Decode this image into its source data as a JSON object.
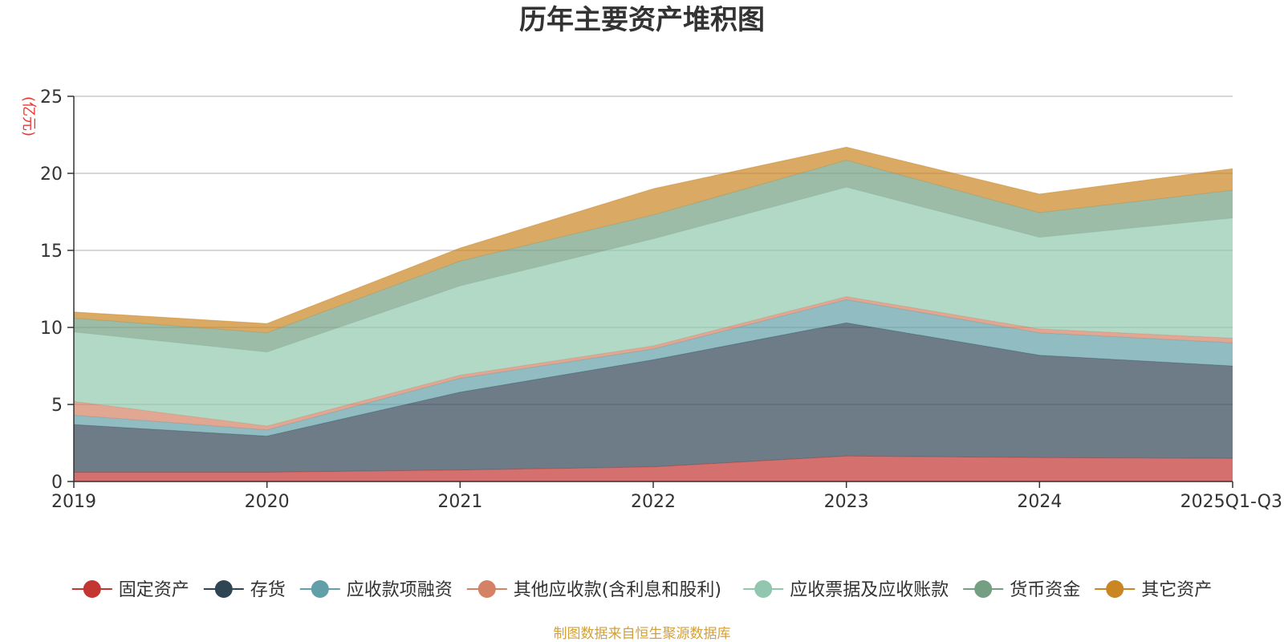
{
  "chart_data": {
    "type": "area",
    "stacked": true,
    "title": "历年主要资产堆积图",
    "ylabel": "(亿元)",
    "xlabel": "",
    "ylim": [
      0,
      25
    ],
    "yticks": [
      0,
      5,
      10,
      15,
      20,
      25
    ],
    "grid": true,
    "legend_position": "bottom",
    "categories": [
      "2019",
      "2020",
      "2021",
      "2022",
      "2023",
      "2024",
      "2025Q1-Q3"
    ],
    "series": [
      {
        "name": "固定资产",
        "color": "#c23531",
        "values": [
          0.6,
          0.6,
          0.75,
          0.95,
          1.65,
          1.55,
          1.5
        ]
      },
      {
        "name": "存货",
        "color": "#2f4554",
        "values": [
          3.1,
          2.35,
          5.05,
          6.95,
          8.65,
          6.65,
          6.0
        ]
      },
      {
        "name": "应收款项融资",
        "color": "#61a0a8",
        "values": [
          0.6,
          0.4,
          0.9,
          0.7,
          1.5,
          1.45,
          1.5
        ]
      },
      {
        "name": "其他应收款(含利息和股利)",
        "color": "#d48265",
        "values": [
          0.9,
          0.25,
          0.2,
          0.2,
          0.2,
          0.25,
          0.3
        ]
      },
      {
        "name": "应收票据及应收账款",
        "color": "#91c7ae",
        "values": [
          4.5,
          4.8,
          5.8,
          6.95,
          7.1,
          5.95,
          7.8
        ]
      },
      {
        "name": "货币资金",
        "color": "#749f83",
        "values": [
          0.9,
          1.25,
          1.6,
          1.55,
          1.75,
          1.6,
          1.8
        ]
      },
      {
        "name": "其它资产",
        "color": "#ca8622",
        "values": [
          0.4,
          0.6,
          0.85,
          1.7,
          0.85,
          1.2,
          1.4
        ]
      }
    ],
    "source_note": "制图数据来自恒生聚源数据库"
  }
}
